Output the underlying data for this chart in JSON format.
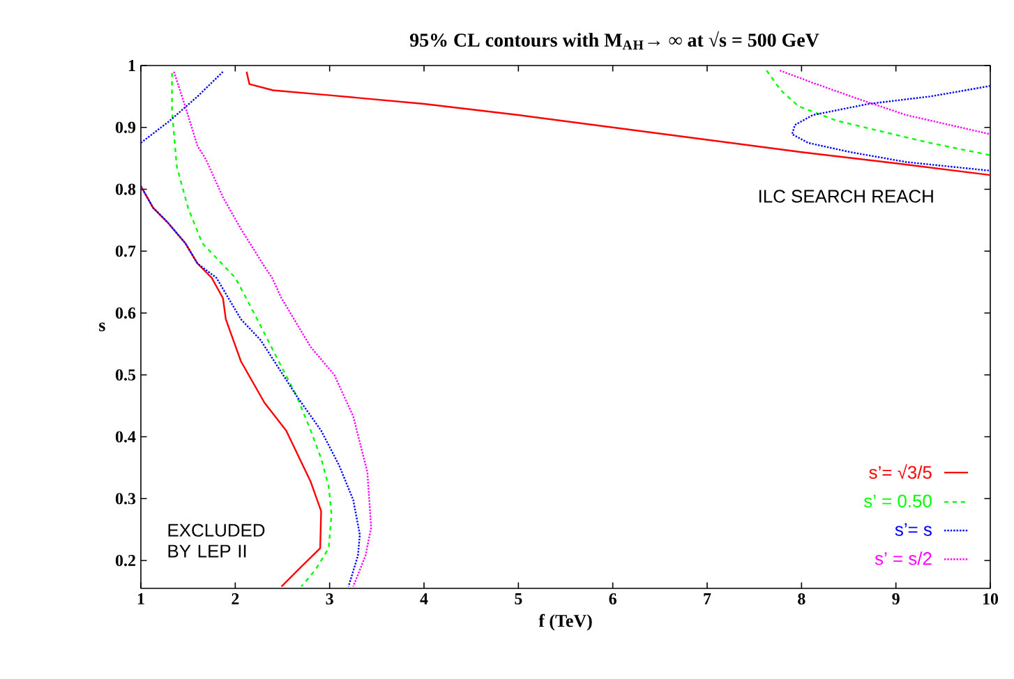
{
  "chart_data": {
    "type": "line",
    "title": "95% CL contours with M$_{A}$$_{H}$→ ∞ at √s = 500 GeV",
    "xlabel": "f (TeV)",
    "ylabel": "s",
    "xlim": [
      1,
      10
    ],
    "ylim": [
      0.155,
      1
    ],
    "xticks": [
      1,
      2,
      3,
      4,
      5,
      6,
      7,
      8,
      9,
      10
    ],
    "yticks": [
      0.2,
      0.3,
      0.4,
      0.5,
      0.6,
      0.7,
      0.8,
      0.9,
      1
    ],
    "grid": false,
    "legend": "bottom right",
    "annotations": [
      "ILC SEARCH REACH",
      "EXCLUDED BY LEP II"
    ],
    "series": [
      {
        "name": "s’= √3/5",
        "color": "#ff0000",
        "line_style": "solid",
        "x": [
          1,
          1.13,
          1.28,
          1.47,
          1.6,
          1.75,
          1.87,
          1.9,
          2.06,
          2.31,
          2.54,
          2.8,
          2.91,
          2.9,
          2.7,
          2.49,
          null,
          2.12,
          2.15,
          2.4,
          3,
          4,
          5,
          6,
          7,
          8,
          9,
          10
        ],
        "values": [
          0.805,
          0.77,
          0.747,
          0.713,
          0.68,
          0.657,
          0.624,
          0.59,
          0.522,
          0.455,
          0.41,
          0.327,
          0.28,
          0.22,
          0.19,
          0.158,
          null,
          0.99,
          0.97,
          0.96,
          0.952,
          0.938,
          0.92,
          0.9,
          0.88,
          0.86,
          0.842,
          0.823
        ]
      },
      {
        "name": "s’ = 0.50",
        "color": "#00ff00",
        "line_style": "dashed",
        "x": [
          1.33,
          1.33,
          1.38,
          1.5,
          1.65,
          2.0,
          2.12,
          2.31,
          2.46,
          2.65,
          2.8,
          2.91,
          2.99,
          3.02,
          2.99,
          2.85,
          2.7,
          null,
          7.63,
          7.78,
          7.97,
          8.37,
          8.86,
          9.36,
          10
        ],
        "values": [
          0.988,
          0.927,
          0.837,
          0.77,
          0.713,
          0.657,
          0.623,
          0.567,
          0.522,
          0.466,
          0.41,
          0.365,
          0.32,
          0.275,
          0.22,
          0.185,
          0.158,
          null,
          0.992,
          0.96,
          0.934,
          0.911,
          0.893,
          0.875,
          0.855
        ]
      },
      {
        "name": "s’= s",
        "color": "#0000ff",
        "line_style": "dotted",
        "x": [
          1,
          1.3,
          1.6,
          1.87,
          null,
          1,
          1.13,
          1.28,
          1.47,
          1.6,
          1.8,
          2.06,
          2.27,
          2.65,
          2.91,
          3.1,
          3.25,
          3.32,
          3.3,
          3.2,
          null,
          10,
          9.36,
          8.71,
          8.12,
          7.93,
          7.9,
          8.07,
          8.52,
          9.11,
          10
        ],
        "values": [
          0.875,
          0.91,
          0.95,
          0.99,
          null,
          0.805,
          0.77,
          0.747,
          0.713,
          0.68,
          0.657,
          0.59,
          0.556,
          0.466,
          0.41,
          0.354,
          0.298,
          0.242,
          0.208,
          0.158,
          null,
          0.967,
          0.95,
          0.938,
          0.92,
          0.904,
          0.889,
          0.875,
          0.86,
          0.844,
          0.83
        ]
      },
      {
        "name": "s’ = s/2",
        "color": "#ff00ff",
        "line_style": "dotted",
        "x": [
          1.35,
          1.47,
          1.6,
          1.69,
          1.87,
          2.06,
          2.31,
          2.39,
          2.49,
          2.8,
          3.05,
          3.25,
          3.4,
          3.44,
          3.38,
          3.25,
          null,
          7.77,
          8.12,
          8.62,
          9.11,
          10
        ],
        "values": [
          0.99,
          0.934,
          0.87,
          0.848,
          0.787,
          0.736,
          0.675,
          0.657,
          0.624,
          0.545,
          0.5,
          0.433,
          0.343,
          0.253,
          0.208,
          0.158,
          null,
          0.992,
          0.972,
          0.945,
          0.92,
          0.889
        ]
      }
    ]
  }
}
